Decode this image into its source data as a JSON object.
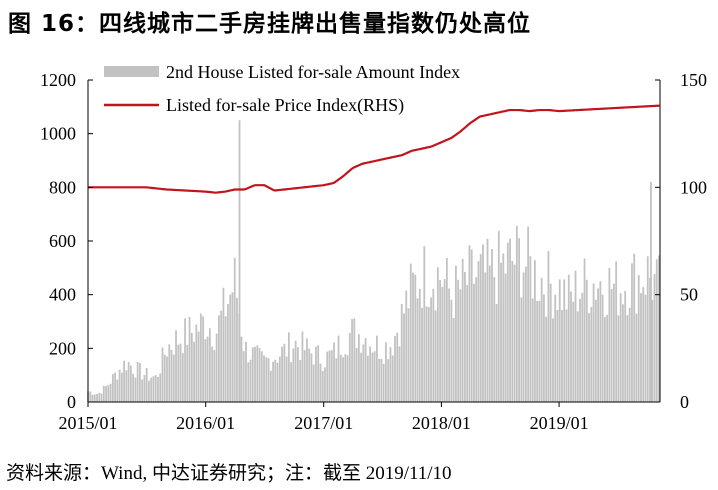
{
  "figure": {
    "title": "图 16：四线城市二手房挂牌出售量指数仍处高位",
    "source": "资料来源：Wind, 中达证券研究；注：截至 2019/11/10"
  },
  "colors": {
    "bars": "#c2c2c2",
    "line": "#c0151c",
    "axis": "#000000"
  },
  "chart_data": {
    "type": "bar+line",
    "title": "",
    "xlabel": "",
    "ylabel": "",
    "x_ticks": [
      "2015/01",
      "2016/01",
      "2017/01",
      "2018/01",
      "2019/01"
    ],
    "x_range": [
      "2015/01/01",
      "2019/11/10"
    ],
    "ylim_left": [
      0,
      1200
    ],
    "yticks_left": [
      0,
      200,
      400,
      600,
      800,
      1000,
      1200
    ],
    "ylim_right": [
      0,
      150
    ],
    "yticks_right": [
      0,
      50,
      100,
      150
    ],
    "legend_position": "top-left",
    "grid": false,
    "series": [
      {
        "name": "2nd House Listed for-sale Amount Index",
        "type": "bar",
        "axis": "left",
        "frequency": "weekly",
        "points": [
          [
            "2015/01",
            40
          ],
          [
            "2015/02",
            30
          ],
          [
            "2015/03",
            60
          ],
          [
            "2015/04",
            110
          ],
          [
            "2015/05",
            150
          ],
          [
            "2015/06",
            120
          ],
          [
            "2015/07",
            100
          ],
          [
            "2015/08",
            90
          ],
          [
            "2015/09",
            200
          ],
          [
            "2015/10",
            230
          ],
          [
            "2015/11",
            250
          ],
          [
            "2015/12",
            270
          ],
          [
            "2016/01",
            300
          ],
          [
            "2016/02",
            260
          ],
          [
            "2016/03",
            350
          ],
          [
            "2016/04",
            450
          ],
          [
            "2016/05",
            200
          ],
          [
            "2016/06",
            170
          ],
          [
            "2016/07",
            150
          ],
          [
            "2016/08",
            170
          ],
          [
            "2016/09",
            190
          ],
          [
            "2016/10",
            220
          ],
          [
            "2016/11",
            200
          ],
          [
            "2016/12",
            180
          ],
          [
            "2017/01",
            160
          ],
          [
            "2017/02",
            180
          ],
          [
            "2017/03",
            230
          ],
          [
            "2017/04",
            260
          ],
          [
            "2017/05",
            250
          ],
          [
            "2017/06",
            220
          ],
          [
            "2017/07",
            200
          ],
          [
            "2017/08",
            220
          ],
          [
            "2017/09",
            320
          ],
          [
            "2017/10",
            420
          ],
          [
            "2017/11",
            470
          ],
          [
            "2017/12",
            480
          ],
          [
            "2018/01",
            470
          ],
          [
            "2018/02",
            400
          ],
          [
            "2018/03",
            420
          ],
          [
            "2018/04",
            460
          ],
          [
            "2018/05",
            470
          ],
          [
            "2018/06",
            470
          ],
          [
            "2018/07",
            500
          ],
          [
            "2018/08",
            520
          ],
          [
            "2018/09",
            540
          ],
          [
            "2018/10",
            500
          ],
          [
            "2018/11",
            460
          ],
          [
            "2018/12",
            440
          ],
          [
            "2019/01",
            420
          ],
          [
            "2019/02",
            380
          ],
          [
            "2019/03",
            420
          ],
          [
            "2019/04",
            440
          ],
          [
            "2019/05",
            450
          ],
          [
            "2019/06",
            440
          ],
          [
            "2019/07",
            420
          ],
          [
            "2019/08",
            450
          ],
          [
            "2019/09",
            460
          ],
          [
            "2019/10",
            480
          ],
          [
            "2019/11",
            430
          ]
        ],
        "spikes": [
          [
            "2016/04/15",
            1050
          ],
          [
            "2019/10/13",
            820
          ]
        ]
      },
      {
        "name": "Listed for-sale Price Index(RHS)",
        "type": "line",
        "axis": "right",
        "points": [
          [
            "2015/01",
            100
          ],
          [
            "2015/03",
            100
          ],
          [
            "2015/05",
            100
          ],
          [
            "2015/07",
            100
          ],
          [
            "2015/09",
            99
          ],
          [
            "2015/11",
            98.5
          ],
          [
            "2016/01",
            98
          ],
          [
            "2016/02",
            97.5
          ],
          [
            "2016/03",
            98
          ],
          [
            "2016/04",
            99
          ],
          [
            "2016/05",
            99
          ],
          [
            "2016/06",
            101
          ],
          [
            "2016/07",
            101
          ],
          [
            "2016/08",
            98.5
          ],
          [
            "2016/09",
            99
          ],
          [
            "2016/10",
            99.5
          ],
          [
            "2016/11",
            100
          ],
          [
            "2016/12",
            100.5
          ],
          [
            "2017/01",
            101
          ],
          [
            "2017/02",
            102
          ],
          [
            "2017/03",
            105
          ],
          [
            "2017/04",
            109
          ],
          [
            "2017/05",
            111
          ],
          [
            "2017/06",
            112
          ],
          [
            "2017/07",
            113
          ],
          [
            "2017/08",
            114
          ],
          [
            "2017/09",
            115
          ],
          [
            "2017/10",
            117
          ],
          [
            "2017/11",
            118
          ],
          [
            "2017/12",
            119
          ],
          [
            "2018/01",
            121
          ],
          [
            "2018/02",
            123
          ],
          [
            "2018/03",
            126
          ],
          [
            "2018/04",
            130
          ],
          [
            "2018/05",
            133
          ],
          [
            "2018/06",
            134
          ],
          [
            "2018/07",
            135
          ],
          [
            "2018/08",
            136
          ],
          [
            "2018/09",
            136
          ],
          [
            "2018/10",
            135.5
          ],
          [
            "2018/11",
            136
          ],
          [
            "2018/12",
            136
          ],
          [
            "2019/01",
            135.5
          ],
          [
            "2019/03",
            136
          ],
          [
            "2019/05",
            136.5
          ],
          [
            "2019/07",
            137
          ],
          [
            "2019/09",
            137.5
          ],
          [
            "2019/11",
            138
          ]
        ]
      }
    ]
  }
}
